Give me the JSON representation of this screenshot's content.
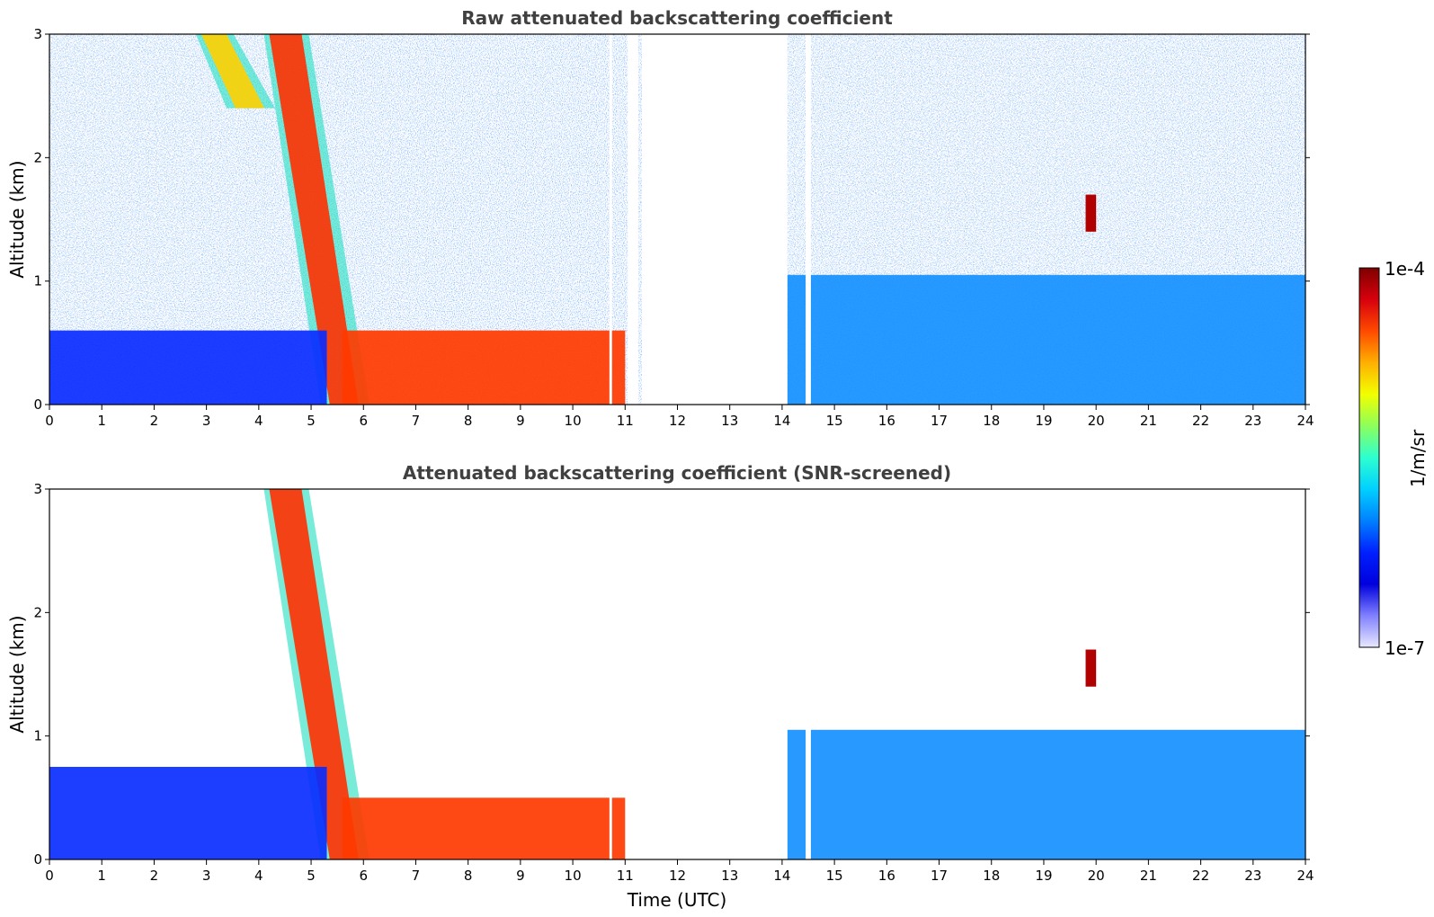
{
  "chart_data": [
    {
      "type": "heatmap",
      "title": "Raw attenuated backscattering coefficient",
      "xlabel": "",
      "ylabel": "Altitude (km)",
      "xlim": [
        0,
        24
      ],
      "ylim": [
        0,
        3
      ],
      "x_ticks": [
        "0",
        "1",
        "2",
        "3",
        "4",
        "5",
        "6",
        "7",
        "8",
        "9",
        "10",
        "11",
        "12",
        "13",
        "14",
        "15",
        "16",
        "17",
        "18",
        "19",
        "20",
        "21",
        "22",
        "23",
        "24"
      ],
      "y_ticks": [
        "0",
        "1",
        "2",
        "3"
      ],
      "data_gaps_utc": [
        [
          10.7,
          10.75
        ],
        [
          11.05,
          11.25
        ],
        [
          11.32,
          14.1
        ],
        [
          14.45,
          14.55
        ]
      ],
      "features": [
        {
          "kind": "falling-cloud-streak",
          "time_utc": [
            4.2,
            5.7
          ],
          "altitude_km": [
            3.0,
            0.0
          ],
          "level": "high"
        },
        {
          "kind": "fall-streak",
          "time_utc": [
            2.9,
            3.9
          ],
          "altitude_km": [
            3.0,
            2.4
          ],
          "level": "medium"
        },
        {
          "kind": "boundary-layer",
          "time_utc": [
            0.0,
            5.3
          ],
          "top_km": 0.6,
          "level": "low"
        },
        {
          "kind": "boundary-layer",
          "time_utc": [
            5.6,
            11.0
          ],
          "top_km": 0.6,
          "level": "high"
        },
        {
          "kind": "boundary-layer",
          "time_utc": [
            14.1,
            24.0
          ],
          "top_km": 1.05,
          "level": "low"
        },
        {
          "kind": "cloud",
          "time_utc": [
            19.8,
            20.0
          ],
          "altitude_km": [
            1.4,
            1.7
          ],
          "level": "high"
        }
      ]
    },
    {
      "type": "heatmap",
      "title": "Attenuated backscattering coefficient (SNR-screened)",
      "xlabel": "Time (UTC)",
      "ylabel": "Altitude (km)",
      "xlim": [
        0,
        24
      ],
      "ylim": [
        0,
        3
      ],
      "x_ticks": [
        "0",
        "1",
        "2",
        "3",
        "4",
        "5",
        "6",
        "7",
        "8",
        "9",
        "10",
        "11",
        "12",
        "13",
        "14",
        "15",
        "16",
        "17",
        "18",
        "19",
        "20",
        "21",
        "22",
        "23",
        "24"
      ],
      "y_ticks": [
        "0",
        "1",
        "2",
        "3"
      ],
      "data_gaps_utc": [
        [
          10.7,
          10.75
        ],
        [
          11.05,
          11.25
        ],
        [
          11.32,
          14.1
        ],
        [
          14.45,
          14.55
        ]
      ],
      "features": [
        {
          "kind": "falling-cloud-streak",
          "time_utc": [
            4.2,
            5.7
          ],
          "altitude_km": [
            3.0,
            0.0
          ],
          "level": "high"
        },
        {
          "kind": "boundary-layer",
          "time_utc": [
            0.0,
            5.3
          ],
          "top_km": 0.75,
          "level": "low"
        },
        {
          "kind": "boundary-layer",
          "time_utc": [
            5.6,
            11.0
          ],
          "top_km": 0.5,
          "level": "high"
        },
        {
          "kind": "boundary-layer",
          "time_utc": [
            14.1,
            24.0
          ],
          "top_km": 1.05,
          "level": "low"
        },
        {
          "kind": "cloud",
          "time_utc": [
            19.8,
            20.0
          ],
          "altitude_km": [
            1.4,
            1.7
          ],
          "level": "high"
        }
      ]
    }
  ],
  "colorbar": {
    "max_label": "1e-4",
    "min_label": "1e-7",
    "unit_label": "1/m/sr",
    "colors": [
      "#7f0000",
      "#d7000d",
      "#ff4a00",
      "#ffb000",
      "#f2ff00",
      "#8cff5c",
      "#2dffd0",
      "#00d0ff",
      "#0080ff",
      "#0020ff",
      "#0000dd",
      "#8080ff",
      "#e8e8ff"
    ]
  }
}
